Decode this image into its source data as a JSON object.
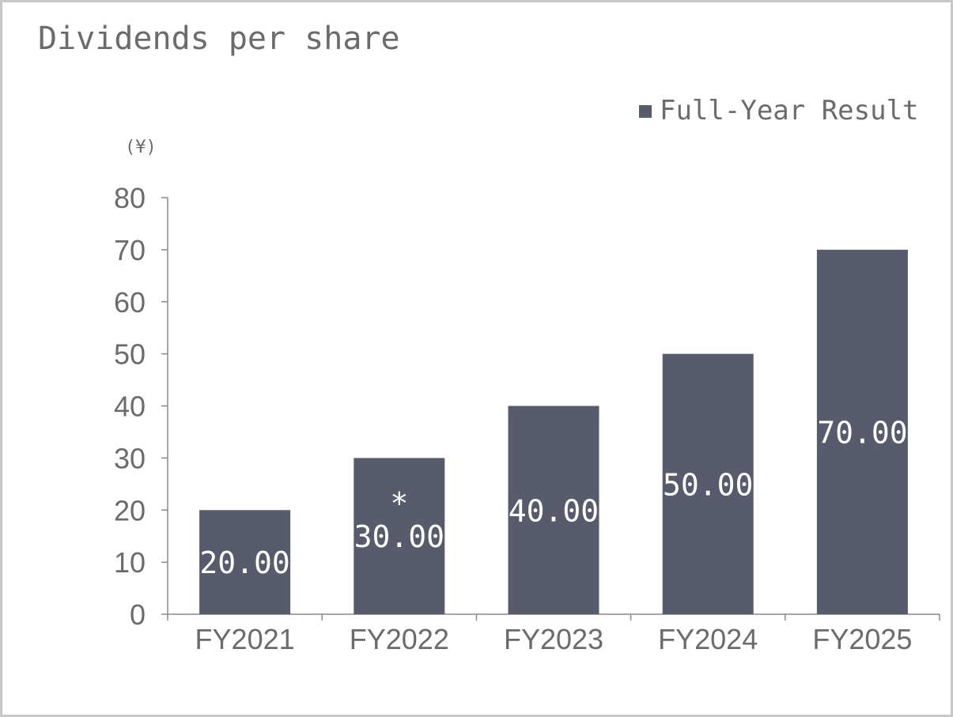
{
  "chart_data": {
    "type": "bar",
    "title": "Dividends per share",
    "unit_label": "(¥)",
    "legend": "Full-Year Result",
    "legend_placement": "top-right",
    "categories": [
      "FY2021",
      "FY2022",
      "FY2023",
      "FY2024",
      "FY2025"
    ],
    "values": [
      20,
      30,
      40,
      50,
      70
    ],
    "data_labels": [
      "20.00",
      "30.00",
      "40.00",
      "50.00",
      "70.00"
    ],
    "annotations": [
      {
        "category": "FY2022",
        "text": "*"
      }
    ],
    "yticks": [
      0,
      10,
      20,
      30,
      40,
      50,
      60,
      70,
      80
    ],
    "ylim": [
      0,
      80
    ],
    "grid": false,
    "bar_color": "#575b6c"
  }
}
